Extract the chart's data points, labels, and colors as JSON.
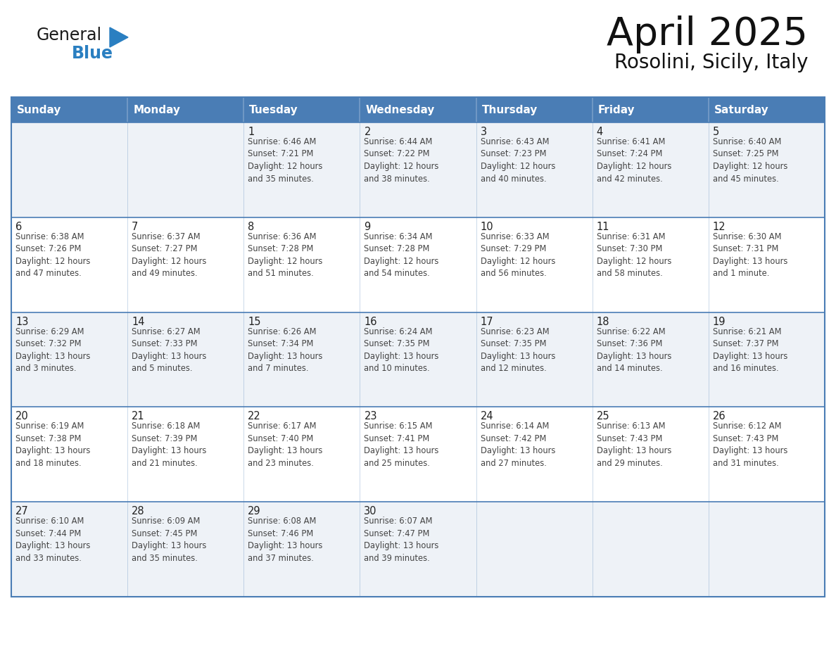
{
  "title": "April 2025",
  "subtitle": "Rosolini, Sicily, Italy",
  "header_bg_color": "#4a7db5",
  "header_text_color": "#ffffff",
  "row_bg_colors": [
    "#eef2f7",
    "#ffffff"
  ],
  "border_color": "#4a7db5",
  "row_divider_color": "#4a7db5",
  "day_names": [
    "Sunday",
    "Monday",
    "Tuesday",
    "Wednesday",
    "Thursday",
    "Friday",
    "Saturday"
  ],
  "text_color": "#333333",
  "day_number_color": "#222222",
  "cell_text_color": "#444444",
  "logo_general_color": "#1a1a1a",
  "logo_blue_color": "#2a7fc1",
  "logo_triangle_color": "#2a7fc1",
  "weeks": [
    [
      {
        "day": "",
        "info": ""
      },
      {
        "day": "",
        "info": ""
      },
      {
        "day": "1",
        "info": "Sunrise: 6:46 AM\nSunset: 7:21 PM\nDaylight: 12 hours\nand 35 minutes."
      },
      {
        "day": "2",
        "info": "Sunrise: 6:44 AM\nSunset: 7:22 PM\nDaylight: 12 hours\nand 38 minutes."
      },
      {
        "day": "3",
        "info": "Sunrise: 6:43 AM\nSunset: 7:23 PM\nDaylight: 12 hours\nand 40 minutes."
      },
      {
        "day": "4",
        "info": "Sunrise: 6:41 AM\nSunset: 7:24 PM\nDaylight: 12 hours\nand 42 minutes."
      },
      {
        "day": "5",
        "info": "Sunrise: 6:40 AM\nSunset: 7:25 PM\nDaylight: 12 hours\nand 45 minutes."
      }
    ],
    [
      {
        "day": "6",
        "info": "Sunrise: 6:38 AM\nSunset: 7:26 PM\nDaylight: 12 hours\nand 47 minutes."
      },
      {
        "day": "7",
        "info": "Sunrise: 6:37 AM\nSunset: 7:27 PM\nDaylight: 12 hours\nand 49 minutes."
      },
      {
        "day": "8",
        "info": "Sunrise: 6:36 AM\nSunset: 7:28 PM\nDaylight: 12 hours\nand 51 minutes."
      },
      {
        "day": "9",
        "info": "Sunrise: 6:34 AM\nSunset: 7:28 PM\nDaylight: 12 hours\nand 54 minutes."
      },
      {
        "day": "10",
        "info": "Sunrise: 6:33 AM\nSunset: 7:29 PM\nDaylight: 12 hours\nand 56 minutes."
      },
      {
        "day": "11",
        "info": "Sunrise: 6:31 AM\nSunset: 7:30 PM\nDaylight: 12 hours\nand 58 minutes."
      },
      {
        "day": "12",
        "info": "Sunrise: 6:30 AM\nSunset: 7:31 PM\nDaylight: 13 hours\nand 1 minute."
      }
    ],
    [
      {
        "day": "13",
        "info": "Sunrise: 6:29 AM\nSunset: 7:32 PM\nDaylight: 13 hours\nand 3 minutes."
      },
      {
        "day": "14",
        "info": "Sunrise: 6:27 AM\nSunset: 7:33 PM\nDaylight: 13 hours\nand 5 minutes."
      },
      {
        "day": "15",
        "info": "Sunrise: 6:26 AM\nSunset: 7:34 PM\nDaylight: 13 hours\nand 7 minutes."
      },
      {
        "day": "16",
        "info": "Sunrise: 6:24 AM\nSunset: 7:35 PM\nDaylight: 13 hours\nand 10 minutes."
      },
      {
        "day": "17",
        "info": "Sunrise: 6:23 AM\nSunset: 7:35 PM\nDaylight: 13 hours\nand 12 minutes."
      },
      {
        "day": "18",
        "info": "Sunrise: 6:22 AM\nSunset: 7:36 PM\nDaylight: 13 hours\nand 14 minutes."
      },
      {
        "day": "19",
        "info": "Sunrise: 6:21 AM\nSunset: 7:37 PM\nDaylight: 13 hours\nand 16 minutes."
      }
    ],
    [
      {
        "day": "20",
        "info": "Sunrise: 6:19 AM\nSunset: 7:38 PM\nDaylight: 13 hours\nand 18 minutes."
      },
      {
        "day": "21",
        "info": "Sunrise: 6:18 AM\nSunset: 7:39 PM\nDaylight: 13 hours\nand 21 minutes."
      },
      {
        "day": "22",
        "info": "Sunrise: 6:17 AM\nSunset: 7:40 PM\nDaylight: 13 hours\nand 23 minutes."
      },
      {
        "day": "23",
        "info": "Sunrise: 6:15 AM\nSunset: 7:41 PM\nDaylight: 13 hours\nand 25 minutes."
      },
      {
        "day": "24",
        "info": "Sunrise: 6:14 AM\nSunset: 7:42 PM\nDaylight: 13 hours\nand 27 minutes."
      },
      {
        "day": "25",
        "info": "Sunrise: 6:13 AM\nSunset: 7:43 PM\nDaylight: 13 hours\nand 29 minutes."
      },
      {
        "day": "26",
        "info": "Sunrise: 6:12 AM\nSunset: 7:43 PM\nDaylight: 13 hours\nand 31 minutes."
      }
    ],
    [
      {
        "day": "27",
        "info": "Sunrise: 6:10 AM\nSunset: 7:44 PM\nDaylight: 13 hours\nand 33 minutes."
      },
      {
        "day": "28",
        "info": "Sunrise: 6:09 AM\nSunset: 7:45 PM\nDaylight: 13 hours\nand 35 minutes."
      },
      {
        "day": "29",
        "info": "Sunrise: 6:08 AM\nSunset: 7:46 PM\nDaylight: 13 hours\nand 37 minutes."
      },
      {
        "day": "30",
        "info": "Sunrise: 6:07 AM\nSunset: 7:47 PM\nDaylight: 13 hours\nand 39 minutes."
      },
      {
        "day": "",
        "info": ""
      },
      {
        "day": "",
        "info": ""
      },
      {
        "day": "",
        "info": ""
      }
    ]
  ]
}
